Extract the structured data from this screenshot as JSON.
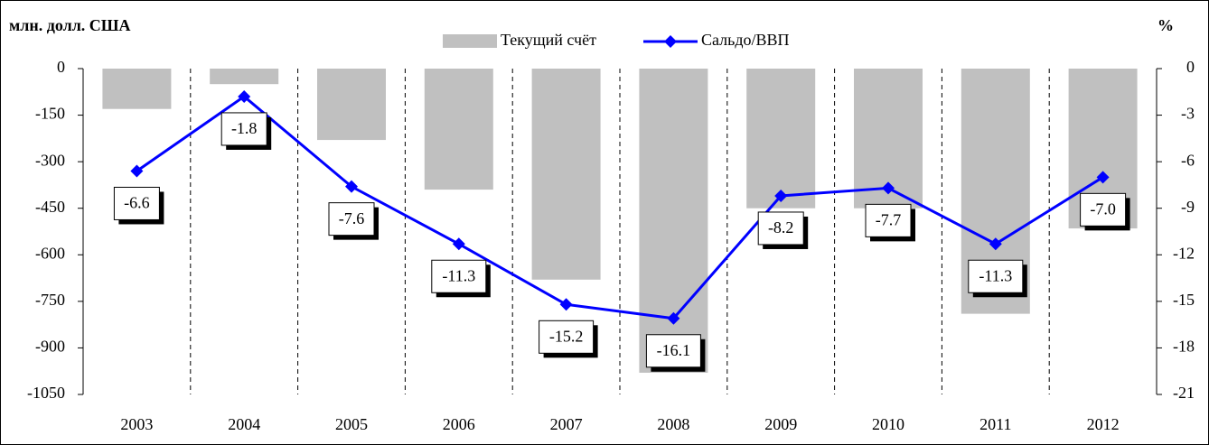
{
  "chart_data": {
    "type": "bar_line",
    "y_label": "млн. долл. США",
    "y2_label": "%",
    "categories": [
      "2003",
      "2004",
      "2005",
      "2006",
      "2007",
      "2008",
      "2009",
      "2010",
      "2011",
      "2012"
    ],
    "series": [
      {
        "name": "Текущий счёт",
        "type": "bar",
        "color": "#c0c0c0",
        "values": [
          -130,
          -50,
          -230,
          -390,
          -680,
          -980,
          -450,
          -450,
          -790,
          -515
        ]
      },
      {
        "name": "Сальдо/ВВП",
        "type": "line",
        "axis": "y2",
        "color": "#0000ff",
        "values": [
          -6.6,
          -1.8,
          -7.6,
          -11.3,
          -15.2,
          -16.1,
          -8.2,
          -7.7,
          -11.3,
          -7.0
        ],
        "value_labels": [
          "-6.6",
          "-1.8",
          "-7.6",
          "-11.3",
          "-15.2",
          "-16.1",
          "-8.2",
          "-7.7",
          "-11.3",
          "-7.0"
        ]
      }
    ],
    "ylim": [
      -1050,
      0
    ],
    "yticks": [
      0,
      -150,
      -300,
      -450,
      -600,
      -750,
      -900,
      -1050
    ],
    "y2lim": [
      -21,
      0
    ],
    "y2ticks": [
      0,
      -3,
      -6,
      -9,
      -12,
      -15,
      -18,
      -21
    ]
  }
}
